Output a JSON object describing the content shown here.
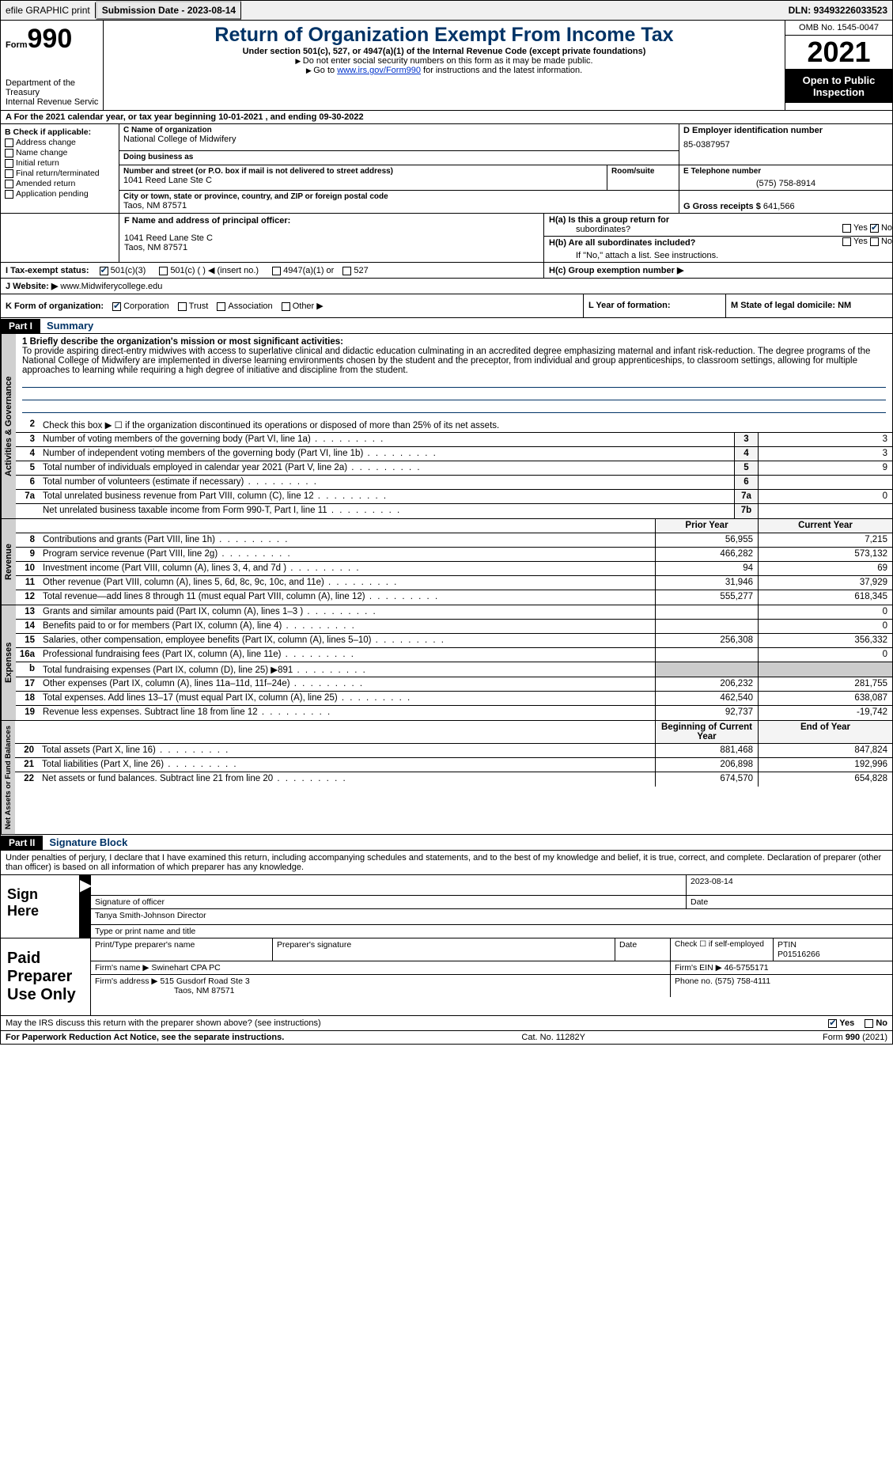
{
  "top_bar": {
    "efile_label": "efile GRAPHIC print",
    "submission_label": "Submission Date - 2023-08-14",
    "dln_label": "DLN: 93493226033523"
  },
  "header": {
    "form_label": "Form",
    "form_number": "990",
    "dept": "Department of the Treasury",
    "irs": "Internal Revenue Service",
    "title": "Return of Organization Exempt From Income Tax",
    "subtitle": "Under section 501(c), 527, or 4947(a)(1) of the Internal Revenue Code (except private foundations)",
    "note1": "Do not enter social security numbers on this form as it may be made public.",
    "note2_pre": "Go to ",
    "note2_link": "www.irs.gov/Form990",
    "note2_post": " for instructions and the latest information.",
    "omb": "OMB No. 1545-0047",
    "year": "2021",
    "inspect": "Open to Public Inspection"
  },
  "row_a": "A For the 2021 calendar year, or tax year beginning 10-01-2021     , and ending 09-30-2022",
  "col_b": {
    "title": "B Check if applicable:",
    "items": [
      "Address change",
      "Name change",
      "Initial return",
      "Final return/terminated",
      "Amended return",
      "Application pending"
    ]
  },
  "col_c": {
    "name_label": "C Name of organization",
    "name": "National College of Midwifery",
    "dba_label": "Doing business as",
    "addr_label": "Number and street (or P.O. box if mail is not delivered to street address)",
    "addr": "1041 Reed Lane Ste C",
    "room_label": "Room/suite",
    "city_label": "City or town, state or province, country, and ZIP or foreign postal code",
    "city": "Taos, NM  87571"
  },
  "col_d": {
    "ein_label": "D Employer identification number",
    "ein": "85-0387957",
    "phone_label": "E Telephone number",
    "phone": "(575) 758-8914",
    "gross_label": "G Gross receipts $",
    "gross": "641,566"
  },
  "row_f": {
    "label": "F  Name and address of principal officer:",
    "addr1": "1041 Reed Lane Ste C",
    "addr2": "Taos, NM  87571"
  },
  "row_h": {
    "ha_label": "H(a)  Is this a group return for",
    "ha_sub": "subordinates?",
    "hb_label": "H(b)  Are all subordinates included?",
    "hb_note": "If \"No,\" attach a list. See instructions.",
    "hc_label": "H(c)  Group exemption number ▶",
    "yes": "Yes",
    "no": "No"
  },
  "row_i": {
    "label": "I     Tax-exempt status:",
    "opt1": "501(c)(3)",
    "opt2": "501(c) (  ) ◀ (insert no.)",
    "opt3": "4947(a)(1) or",
    "opt4": "527"
  },
  "row_j": {
    "label": "J    Website: ▶",
    "value": " www.Midwiferycollege.edu"
  },
  "row_k": {
    "label": "K Form of organization:",
    "opts": [
      "Corporation",
      "Trust",
      "Association",
      "Other ▶"
    ]
  },
  "row_l": {
    "label": "L Year of formation:"
  },
  "row_m": {
    "label": "M State of legal domicile: NM"
  },
  "part1": {
    "header": "Part I",
    "title": "Summary",
    "line1_label": "1  Briefly describe the organization's mission or most significant activities:",
    "mission": "To provide aspiring direct-entry midwives with access to superlative clinical and didactic education culminating in an accredited degree emphasizing maternal and infant risk-reduction. The degree programs of the National College of Midwifery are implemented in diverse learning environments chosen by the student and the preceptor, from individual and group apprenticeships, to classroom settings, allowing for multiple approaches to learning while requiring a high degree of initiative and discipline from the student.",
    "line2": "Check this box ▶ ☐  if the organization discontinued its operations or disposed of more than 25% of its net assets.",
    "vtab_gov": "Activities & Governance",
    "vtab_rev": "Revenue",
    "vtab_exp": "Expenses",
    "vtab_net": "Net Assets or Fund Balances",
    "col_prior": "Prior Year",
    "col_current": "Current Year",
    "col_beg": "Beginning of Current Year",
    "col_end": "End of Year",
    "lines_gov": [
      {
        "n": "3",
        "t": "Number of voting members of the governing body (Part VI, line 1a)",
        "box": "3",
        "v": "3"
      },
      {
        "n": "4",
        "t": "Number of independent voting members of the governing body (Part VI, line 1b)",
        "box": "4",
        "v": "3"
      },
      {
        "n": "5",
        "t": "Total number of individuals employed in calendar year 2021 (Part V, line 2a)",
        "box": "5",
        "v": "9"
      },
      {
        "n": "6",
        "t": "Total number of volunteers (estimate if necessary)",
        "box": "6",
        "v": ""
      },
      {
        "n": "7a",
        "t": "Total unrelated business revenue from Part VIII, column (C), line 12",
        "box": "7a",
        "v": "0"
      },
      {
        "n": "",
        "t": "Net unrelated business taxable income from Form 990-T, Part I, line 11",
        "box": "7b",
        "v": ""
      }
    ],
    "lines_rev": [
      {
        "n": "8",
        "t": "Contributions and grants (Part VIII, line 1h)",
        "p": "56,955",
        "c": "7,215"
      },
      {
        "n": "9",
        "t": "Program service revenue (Part VIII, line 2g)",
        "p": "466,282",
        "c": "573,132"
      },
      {
        "n": "10",
        "t": "Investment income (Part VIII, column (A), lines 3, 4, and 7d )",
        "p": "94",
        "c": "69"
      },
      {
        "n": "11",
        "t": "Other revenue (Part VIII, column (A), lines 5, 6d, 8c, 9c, 10c, and 11e)",
        "p": "31,946",
        "c": "37,929"
      },
      {
        "n": "12",
        "t": "Total revenue—add lines 8 through 11 (must equal Part VIII, column (A), line 12)",
        "p": "555,277",
        "c": "618,345"
      }
    ],
    "lines_exp": [
      {
        "n": "13",
        "t": "Grants and similar amounts paid (Part IX, column (A), lines 1–3 )",
        "p": "",
        "c": "0"
      },
      {
        "n": "14",
        "t": "Benefits paid to or for members (Part IX, column (A), line 4)",
        "p": "",
        "c": "0"
      },
      {
        "n": "15",
        "t": "Salaries, other compensation, employee benefits (Part IX, column (A), lines 5–10)",
        "p": "256,308",
        "c": "356,332"
      },
      {
        "n": "16a",
        "t": "Professional fundraising fees (Part IX, column (A), line 11e)",
        "p": "",
        "c": "0"
      },
      {
        "n": "b",
        "t": "Total fundraising expenses (Part IX, column (D), line 25) ▶891",
        "p": "grey",
        "c": "grey"
      },
      {
        "n": "17",
        "t": "Other expenses (Part IX, column (A), lines 11a–11d, 11f–24e)",
        "p": "206,232",
        "c": "281,755"
      },
      {
        "n": "18",
        "t": "Total expenses. Add lines 13–17 (must equal Part IX, column (A), line 25)",
        "p": "462,540",
        "c": "638,087"
      },
      {
        "n": "19",
        "t": "Revenue less expenses. Subtract line 18 from line 12",
        "p": "92,737",
        "c": "-19,742"
      }
    ],
    "lines_net": [
      {
        "n": "20",
        "t": "Total assets (Part X, line 16)",
        "p": "881,468",
        "c": "847,824"
      },
      {
        "n": "21",
        "t": "Total liabilities (Part X, line 26)",
        "p": "206,898",
        "c": "192,996"
      },
      {
        "n": "22",
        "t": "Net assets or fund balances. Subtract line 21 from line 20",
        "p": "674,570",
        "c": "654,828"
      }
    ]
  },
  "part2": {
    "header": "Part II",
    "title": "Signature Block",
    "declare": "Under penalties of perjury, I declare that I have examined this return, including accompanying schedules and statements, and to the best of my knowledge and belief, it is true, correct, and complete. Declaration of preparer (other than officer) is based on all information of which preparer has any knowledge.",
    "sign_here": "Sign Here",
    "sig_officer": "Signature of officer",
    "sig_date": "2023-08-14",
    "date_label": "Date",
    "officer_name": "Tanya Smith-Johnson  Director",
    "type_name": "Type or print name and title",
    "paid_label": "Paid Preparer Use Only",
    "prep_name_label": "Print/Type preparer's name",
    "prep_sig_label": "Preparer's signature",
    "check_if": "Check ☐ if self-employed",
    "ptin_label": "PTIN",
    "ptin": "P01516266",
    "firm_name_label": "Firm's name     ▶",
    "firm_name": "Swinehart CPA PC",
    "firm_ein_label": "Firm's EIN ▶",
    "firm_ein": "46-5755171",
    "firm_addr_label": "Firm's address ▶",
    "firm_addr1": "515 Gusdorf Road Ste 3",
    "firm_addr2": "Taos, NM  87571",
    "firm_phone_label": "Phone no.",
    "firm_phone": "(575) 758-4111",
    "may_irs": "May the IRS discuss this return with the preparer shown above? (see instructions)"
  },
  "footer": {
    "left": "For Paperwork Reduction Act Notice, see the separate instructions.",
    "mid": "Cat. No. 11282Y",
    "right": "Form 990 (2021)"
  }
}
